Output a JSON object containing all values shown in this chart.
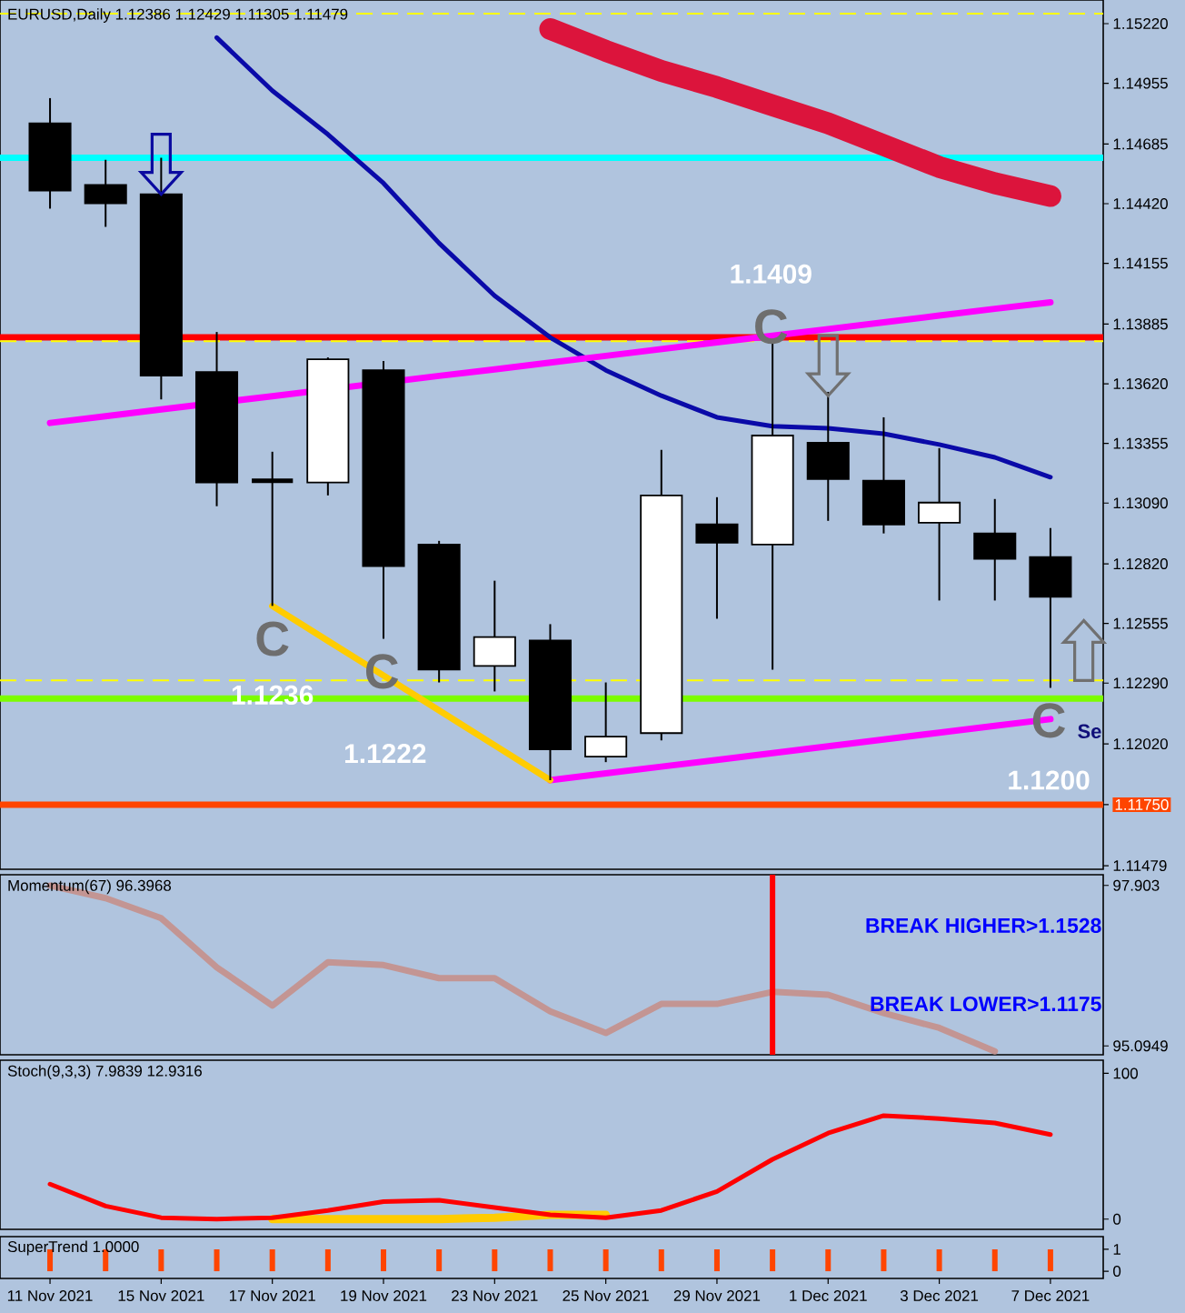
{
  "chart_data": [
    {
      "type": "candlestick",
      "title": "EURUSD,Daily  1.12386 1.12429 1.11305 1.11479",
      "categories": [
        null,
        null,
        null,
        null,
        null,
        null,
        null,
        null,
        null,
        null,
        null,
        null,
        null,
        null,
        null,
        null,
        null,
        null,
        null
      ],
      "ohlc": [
        [
          1.14777,
          1.14889,
          1.14398,
          1.14478
        ],
        [
          1.14503,
          1.14615,
          1.14317,
          1.14422
        ],
        [
          1.14462,
          1.14624,
          1.13551,
          1.13656
        ],
        [
          1.13672,
          1.1385,
          1.13076,
          1.13181
        ],
        [
          1.13189,
          1.13318,
          1.12633,
          1.13189
        ],
        [
          1.13181,
          1.13737,
          1.13124,
          1.13729
        ],
        [
          1.1368,
          1.13721,
          1.12487,
          1.1281
        ],
        [
          1.12906,
          1.12922,
          1.12293,
          1.1235
        ],
        [
          1.12366,
          1.12745,
          1.12253,
          1.12495
        ],
        [
          1.12479,
          1.12552,
          1.11859,
          1.11996
        ],
        [
          1.11963,
          1.12293,
          1.11939,
          1.12052
        ],
        [
          1.12068,
          1.13326,
          1.12036,
          1.13124
        ],
        [
          1.12995,
          1.13116,
          1.12576,
          1.12914
        ],
        [
          1.12906,
          1.13817,
          1.1235,
          1.1339
        ],
        [
          1.13358,
          1.13584,
          1.13011,
          1.13197
        ],
        [
          1.13189,
          1.13471,
          1.12955,
          1.12995
        ],
        [
          1.13003,
          1.13334,
          1.12657,
          1.13092
        ],
        [
          1.12955,
          1.13108,
          1.12657,
          1.12842
        ],
        [
          1.1285,
          1.12979,
          1.12269,
          1.12673
        ]
      ],
      "series": [
        {
          "type": "line",
          "color": "#0a0aa8",
          "values": [
            null,
            null,
            null,
            1.15158,
            1.14922,
            1.14728,
            1.14511,
            1.14245,
            1.14011,
            1.13826,
            1.1368,
            1.13567,
            1.13471,
            1.13431,
            1.13422,
            1.13398,
            1.1335,
            1.13293,
            1.13205
          ]
        },
        {
          "type": "line",
          "color": "#dc143c",
          "values": [
            null,
            null,
            null,
            null,
            null,
            null,
            null,
            null,
            null,
            1.15196,
            1.15099,
            1.1501,
            1.14938,
            1.14857,
            1.14777,
            1.1468,
            1.14583,
            1.14511,
            1.14454
          ]
        },
        {
          "type": "line",
          "color": "#ff00ff",
          "values": [
            1.13446,
            1.13476,
            1.13506,
            null,
            1.13565,
            null,
            null,
            1.13655,
            1.13684,
            1.13714,
            1.13744,
            1.13774,
            1.13804,
            1.13833,
            1.13863,
            1.13893,
            1.13923,
            1.13953,
            1.13982
          ]
        },
        {
          "type": "line",
          "color": "#ff00ff",
          "values": [
            null,
            null,
            null,
            null,
            null,
            null,
            null,
            null,
            null,
            1.11859,
            1.11889,
            1.11919,
            1.11949,
            1.11979,
            1.12009,
            1.1204,
            1.1207,
            1.121,
            1.1213
          ]
        },
        {
          "type": "line",
          "color": "#ffcc00",
          "values": [
            null,
            null,
            null,
            null,
            1.12633,
            1.12478,
            1.12324,
            1.12169,
            1.12014,
            1.11859,
            null,
            null,
            null,
            null,
            null,
            null,
            null,
            null,
            null
          ]
        }
      ],
      "ylim": [
        1.11463,
        1.15325
      ],
      "yticks": [
        {
          "value": 1.1522,
          "label": "1.15220"
        },
        {
          "value": 1.14955,
          "label": "1.14955"
        },
        {
          "value": 1.14685,
          "label": "1.14685"
        },
        {
          "value": 1.1442,
          "label": "1.14420"
        },
        {
          "value": 1.14155,
          "label": "1.14155"
        },
        {
          "value": 1.13885,
          "label": "1.13885"
        },
        {
          "value": 1.1362,
          "label": "1.13620"
        },
        {
          "value": 1.13355,
          "label": "1.13355"
        },
        {
          "value": 1.1309,
          "label": "1.13090"
        },
        {
          "value": 1.1282,
          "label": "1.12820"
        },
        {
          "value": 1.12555,
          "label": "1.12555"
        },
        {
          "value": 1.1229,
          "label": "1.12290"
        },
        {
          "value": 1.1202,
          "label": "1.12020"
        },
        {
          "value": 1.1175,
          "label": "1.11750"
        },
        {
          "value": 1.11479,
          "label": "1.11479"
        }
      ],
      "ref_lines": [
        {
          "axis": "y",
          "value": 1.15264,
          "color": "#ffff00",
          "line_style": "dashed"
        },
        {
          "axis": "y",
          "value": 1.14624,
          "color": "#00ffff"
        },
        {
          "axis": "y",
          "value": 1.13826,
          "color": "#ff0000"
        },
        {
          "axis": "y",
          "value": 1.13809,
          "color": "#ffff00",
          "line_style": "dashed"
        },
        {
          "axis": "y",
          "value": 1.12302,
          "color": "#ffff00",
          "line_style": "dashed"
        },
        {
          "axis": "y",
          "value": 1.12221,
          "color": "#7cfc00"
        },
        {
          "axis": "y",
          "value": 1.1175,
          "color": "#ff4500"
        }
      ],
      "annotations": [
        "1.1409",
        "C",
        "C",
        "1.1236",
        "C",
        "1.1222",
        "C",
        "1.1200",
        "Se"
      ],
      "tick_labels": "y"
    },
    {
      "type": "line",
      "title": "Momentum(67) 96.3968",
      "categories": [
        null,
        null,
        null,
        null,
        null,
        null,
        null,
        null,
        null,
        null,
        null,
        null,
        null,
        null,
        null,
        null,
        null,
        null,
        null
      ],
      "series": [
        {
          "color": "#c39593",
          "values": [
            97.9,
            97.68,
            97.33,
            96.47,
            95.8,
            96.56,
            96.51,
            96.28,
            96.28,
            95.7,
            95.32,
            95.83,
            95.83,
            96.04,
            95.99,
            95.67,
            95.41,
            95.0,
            null
          ]
        }
      ],
      "ylim": [
        94.94,
        98.09
      ],
      "yticks": [
        97.903,
        95.0949
      ],
      "annotations": [
        "BREAK HIGHER>1.1528",
        "BREAK LOWER>1.1175"
      ],
      "tick_labels": "y"
    },
    {
      "type": "line",
      "title": "Stoch(9,3,3) 7.9839 12.9316",
      "categories": [
        null,
        null,
        null,
        null,
        null,
        null,
        null,
        null,
        null,
        null,
        null,
        null,
        null,
        null,
        null,
        null,
        null,
        null,
        null
      ],
      "series": [
        {
          "color": "#ffcc00",
          "values": [
            null,
            null,
            null,
            null,
            0,
            0,
            0,
            0,
            1,
            3,
            3,
            null,
            null,
            null,
            null,
            null,
            null,
            null,
            null
          ]
        },
        {
          "color": "#ff0000",
          "values": [
            24,
            9,
            1,
            0,
            1,
            6,
            12,
            13,
            8,
            3,
            1,
            6,
            19,
            41,
            59,
            71,
            69,
            66,
            58
          ]
        }
      ],
      "ylim": [
        -7,
        109
      ],
      "yticks": [
        0,
        100
      ],
      "tick_labels": "y"
    },
    {
      "type": "bar",
      "title": "SuperTrend 1.0000",
      "categories": [
        "11 Nov 2021",
        null,
        "15 Nov 2021",
        null,
        "17 Nov 2021",
        null,
        "19 Nov 2021",
        null,
        "23 Nov 2021",
        null,
        "25 Nov 2021",
        null,
        "29 Nov 2021",
        null,
        "1 Dec 2021",
        null,
        "3 Dec 2021",
        null,
        "7 Dec 2021"
      ],
      "values": [
        1,
        1,
        1,
        1,
        1,
        1,
        1,
        1,
        1,
        1,
        1,
        1,
        1,
        1,
        1,
        1,
        1,
        1,
        1
      ],
      "color": "#ff4500",
      "ylim": [
        -0.33,
        1.58
      ],
      "yticks": [
        0,
        1
      ]
    }
  ]
}
